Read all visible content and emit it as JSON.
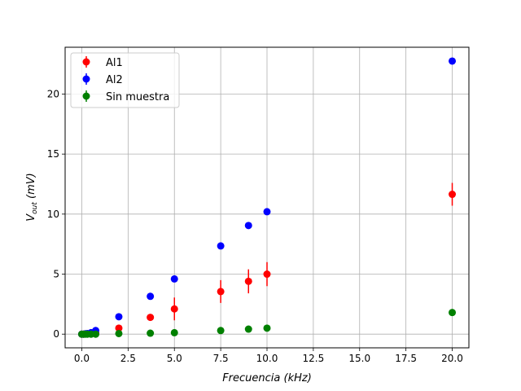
{
  "chart_data": {
    "type": "scatter",
    "xlabel": "Frecuencia (kHz)",
    "ylabel_main": "V",
    "ylabel_sub": "out",
    "ylabel_unit": " (mV)",
    "xlim": [
      -0.9,
      20.9
    ],
    "ylim": [
      -1.14,
      23.9
    ],
    "xticks": [
      0.0,
      2.5,
      5.0,
      7.5,
      10.0,
      12.5,
      15.0,
      17.5,
      20.0
    ],
    "xtick_labels": [
      "0.0",
      "2.5",
      "5.0",
      "7.5",
      "10.0",
      "12.5",
      "15.0",
      "17.5",
      "20.0"
    ],
    "yticks": [
      0,
      5,
      10,
      15,
      20
    ],
    "ytick_labels": [
      "0",
      "5",
      "10",
      "15",
      "20"
    ],
    "grid": true,
    "legend_position": "top-left",
    "series": [
      {
        "name": "Al1",
        "color": "#ff0000",
        "x": [
          0.0,
          0.1,
          0.2,
          0.3,
          0.5,
          0.75,
          2.0,
          3.7,
          5.0,
          7.5,
          9.0,
          10.0,
          20.0
        ],
        "y": [
          0.0,
          0.0,
          0.02,
          0.03,
          0.05,
          0.1,
          0.5,
          1.4,
          2.1,
          3.55,
          4.4,
          5.0,
          11.65
        ],
        "yerr": [
          0.0,
          0.0,
          0.0,
          0.0,
          0.0,
          0.0,
          0.1,
          0.2,
          0.95,
          0.95,
          1.0,
          1.0,
          0.95
        ]
      },
      {
        "name": "Al2",
        "color": "#0000ff",
        "x": [
          0.0,
          0.1,
          0.2,
          0.3,
          0.5,
          0.75,
          2.0,
          3.7,
          5.0,
          7.5,
          9.0,
          10.0,
          20.0
        ],
        "y": [
          0.0,
          0.0,
          0.03,
          0.05,
          0.12,
          0.3,
          1.45,
          3.15,
          4.6,
          7.35,
          9.05,
          10.2,
          22.75
        ],
        "yerr": [
          0,
          0,
          0,
          0,
          0,
          0,
          0,
          0,
          0,
          0,
          0,
          0,
          0
        ]
      },
      {
        "name": "Sin muestra",
        "color": "#008000",
        "x": [
          0.0,
          0.1,
          0.2,
          0.3,
          0.5,
          0.75,
          2.0,
          3.7,
          5.0,
          7.5,
          9.0,
          10.0,
          20.0
        ],
        "y": [
          0.0,
          0.0,
          0.0,
          0.0,
          0.0,
          0.0,
          0.05,
          0.08,
          0.12,
          0.3,
          0.42,
          0.5,
          1.8
        ],
        "yerr": [
          0,
          0,
          0,
          0,
          0,
          0,
          0,
          0,
          0,
          0,
          0,
          0,
          0
        ]
      }
    ]
  }
}
